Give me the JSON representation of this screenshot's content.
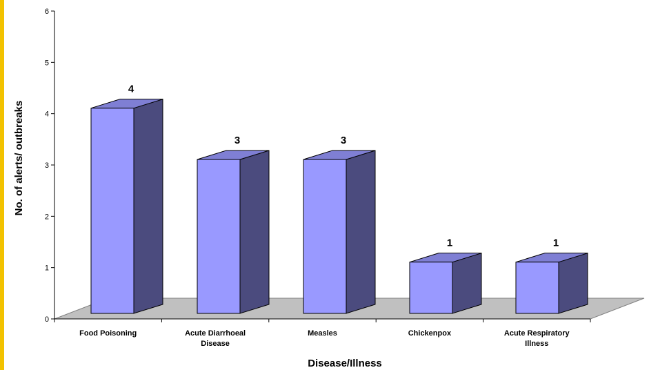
{
  "chart_data": {
    "type": "bar",
    "categories": [
      [
        "Food Poisoning"
      ],
      [
        "Acute Diarrhoeal",
        "Disease"
      ],
      [
        "Measles"
      ],
      [
        "Chickenpox"
      ],
      [
        "Acute Respiratory",
        "Illness"
      ]
    ],
    "values": [
      4,
      3,
      3,
      1,
      1
    ],
    "xlabel": "Disease/Illness",
    "ylabel": "No. of alerts/ outbreaks",
    "ylim": [
      0,
      6
    ],
    "yticks": [
      0,
      1,
      2,
      3,
      4,
      5,
      6
    ],
    "grid": false,
    "style": "3d-column",
    "colors": {
      "bar_front": "#9999ff",
      "bar_side": "#4b4b7e",
      "bar_top": "#7f7fd4",
      "floor": "#c0c0c0",
      "frame_border": "#f2c200"
    }
  }
}
